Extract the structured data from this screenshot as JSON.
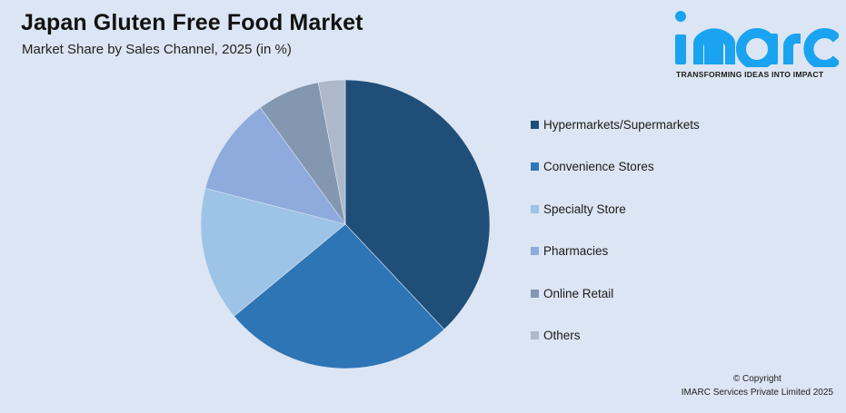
{
  "header": {
    "title": "Japan Gluten Free Food Market",
    "subtitle": "Market Share by Sales Channel, 2025 (in %)"
  },
  "logo": {
    "wordmark": "imarc",
    "tagline": "TRANSFORMING IDEAS INTO IMPACT",
    "color": "#1aa3f0"
  },
  "footer": {
    "line1": "© Copyright",
    "line2": "IMARC Services Private Limited 2025"
  },
  "chart_data": {
    "type": "pie",
    "title": "Japan Gluten Free Food Market",
    "subtitle": "Market Share by Sales Channel, 2025 (in %)",
    "values_note": "No values are labeled in the chart; shares are estimated from slice angles",
    "legend_position": "right",
    "start_angle": "12 o'clock, clockwise",
    "categories": [
      "Hypermarkets/Supermarkets",
      "Convenience Stores",
      "Specialty Store",
      "Pharmacies",
      "Online Retail",
      "Others"
    ],
    "values": [
      38,
      26,
      15,
      11,
      7,
      3
    ],
    "colors": [
      "#1f4e79",
      "#2e75b6",
      "#9dc3e6",
      "#8faadc",
      "#8497b0",
      "#adb9ca"
    ]
  }
}
